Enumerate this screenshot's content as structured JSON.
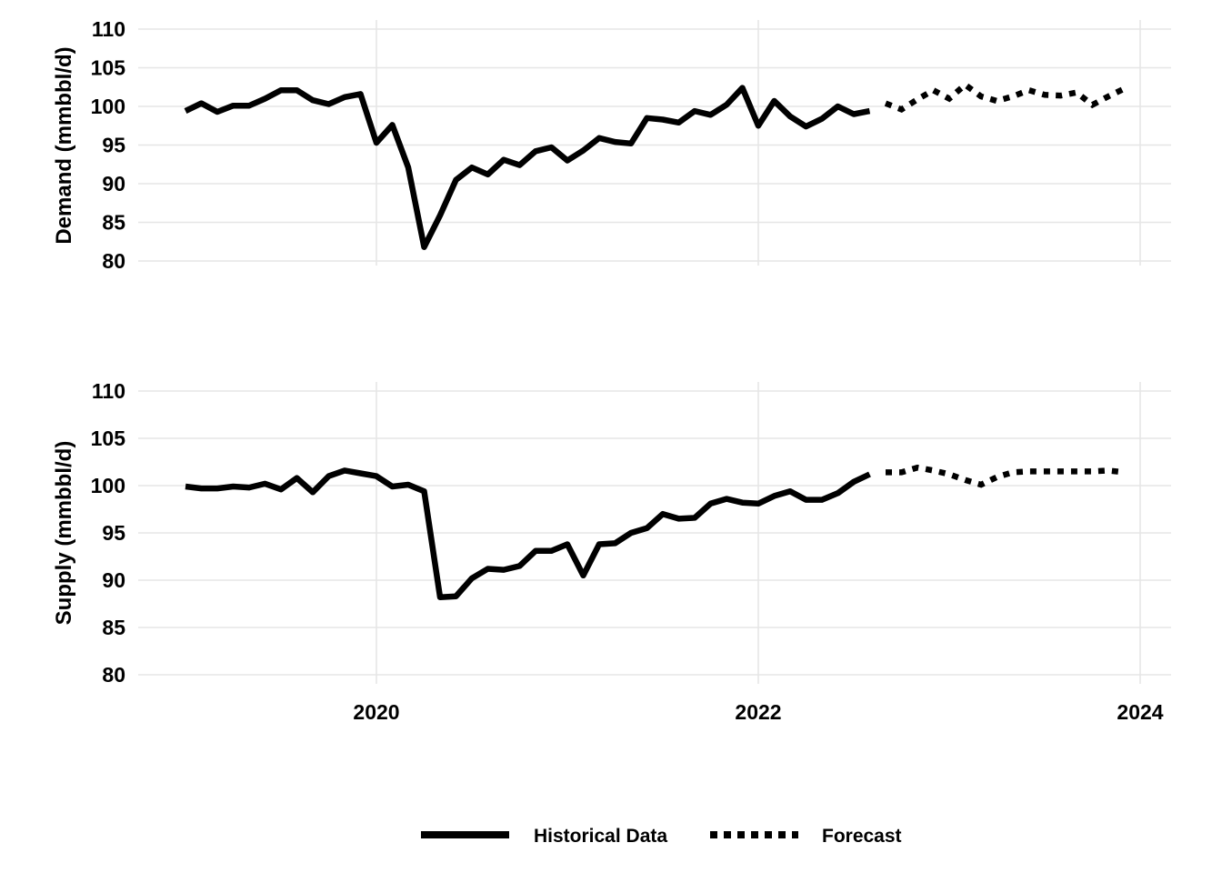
{
  "chart_data": {
    "type": "line",
    "x_axis": {
      "type": "time",
      "range": [
        "2019-01",
        "2024-01"
      ],
      "tick_labels": [
        "2020",
        "2022",
        "2024"
      ],
      "tick_positions": [
        "2020-01",
        "2022-01",
        "2024-01"
      ]
    },
    "grid": true,
    "legend": {
      "placement": "bottom",
      "entries": [
        {
          "label": "Historical Data",
          "style": "solid"
        },
        {
          "label": "Forecast",
          "style": "dotted"
        }
      ]
    },
    "panels": [
      {
        "id": "demand",
        "ylabel": "Demand (mmbbl/d)",
        "ylim": [
          80,
          110
        ],
        "yticks": [
          80,
          85,
          90,
          95,
          100,
          105,
          110
        ],
        "series": [
          {
            "style": "solid",
            "x": [
              "2019-01",
              "2019-02",
              "2019-03",
              "2019-04",
              "2019-05",
              "2019-06",
              "2019-07",
              "2019-08",
              "2019-09",
              "2019-10",
              "2019-11",
              "2019-12",
              "2020-01",
              "2020-02",
              "2020-03",
              "2020-04",
              "2020-05",
              "2020-06",
              "2020-07",
              "2020-08",
              "2020-09",
              "2020-10",
              "2020-11",
              "2020-12",
              "2021-01",
              "2021-02",
              "2021-03",
              "2021-04",
              "2021-05",
              "2021-06",
              "2021-07",
              "2021-08",
              "2021-09",
              "2021-10",
              "2021-11",
              "2021-12",
              "2022-01",
              "2022-02",
              "2022-03",
              "2022-04",
              "2022-05",
              "2022-06",
              "2022-07",
              "2022-08"
            ],
            "y": [
              99.4,
              100.4,
              99.3,
              100.1,
              100.1,
              101.0,
              102.1,
              102.1,
              100.8,
              100.3,
              101.2,
              101.6,
              95.3,
              97.6,
              92.1,
              81.8,
              85.9,
              90.5,
              92.1,
              91.2,
              93.1,
              92.4,
              94.2,
              94.7,
              93.0,
              94.3,
              95.9,
              95.4,
              95.2,
              98.5,
              98.3,
              97.9,
              99.4,
              98.9,
              100.2,
              102.4,
              97.5,
              100.7,
              98.7,
              97.4,
              98.4,
              100.0,
              99.0,
              99.4
            ]
          },
          {
            "style": "dotted",
            "x": [
              "2022-09",
              "2022-10",
              "2022-11",
              "2022-12",
              "2023-01",
              "2023-02",
              "2023-03",
              "2023-04",
              "2023-05",
              "2023-06",
              "2023-07",
              "2023-08",
              "2023-09",
              "2023-10",
              "2023-11",
              "2023-12"
            ],
            "y": [
              100.4,
              99.6,
              100.9,
              102.1,
              101.0,
              102.8,
              101.3,
              100.7,
              101.3,
              102.1,
              101.5,
              101.4,
              101.8,
              100.2,
              101.3,
              102.3
            ]
          }
        ]
      },
      {
        "id": "supply",
        "ylabel": "Supply (mmbbl/d)",
        "ylim": [
          80,
          110
        ],
        "yticks": [
          80,
          85,
          90,
          95,
          100,
          105,
          110
        ],
        "series": [
          {
            "style": "solid",
            "x": [
              "2019-01",
              "2019-02",
              "2019-03",
              "2019-04",
              "2019-05",
              "2019-06",
              "2019-07",
              "2019-08",
              "2019-09",
              "2019-10",
              "2019-11",
              "2019-12",
              "2020-01",
              "2020-02",
              "2020-03",
              "2020-04",
              "2020-05",
              "2020-06",
              "2020-07",
              "2020-08",
              "2020-09",
              "2020-10",
              "2020-11",
              "2020-12",
              "2021-01",
              "2021-02",
              "2021-03",
              "2021-04",
              "2021-05",
              "2021-06",
              "2021-07",
              "2021-08",
              "2021-09",
              "2021-10",
              "2021-11",
              "2021-12",
              "2022-01",
              "2022-02",
              "2022-03",
              "2022-04",
              "2022-05",
              "2022-06",
              "2022-07",
              "2022-08"
            ],
            "y": [
              99.9,
              99.7,
              99.7,
              99.9,
              99.8,
              100.2,
              99.6,
              100.8,
              99.3,
              101.0,
              101.6,
              101.3,
              101.0,
              99.9,
              100.1,
              99.4,
              88.2,
              88.3,
              90.2,
              91.2,
              91.1,
              91.5,
              93.1,
              93.1,
              93.8,
              90.5,
              93.8,
              93.9,
              95.0,
              95.5,
              97.0,
              96.5,
              96.6,
              98.1,
              98.6,
              98.2,
              98.1,
              98.9,
              99.4,
              98.5,
              98.5,
              99.2,
              100.4,
              101.2
            ]
          },
          {
            "style": "dotted",
            "x": [
              "2022-09",
              "2022-10",
              "2022-11",
              "2022-12",
              "2023-01",
              "2023-02",
              "2023-03",
              "2023-04",
              "2023-05",
              "2023-06",
              "2023-07",
              "2023-08",
              "2023-09",
              "2023-10",
              "2023-11",
              "2023-12"
            ],
            "y": [
              101.4,
              101.4,
              101.9,
              101.6,
              101.2,
              100.6,
              100.1,
              100.9,
              101.4,
              101.5,
              101.5,
              101.5,
              101.5,
              101.5,
              101.6,
              101.4
            ]
          }
        ]
      }
    ]
  }
}
